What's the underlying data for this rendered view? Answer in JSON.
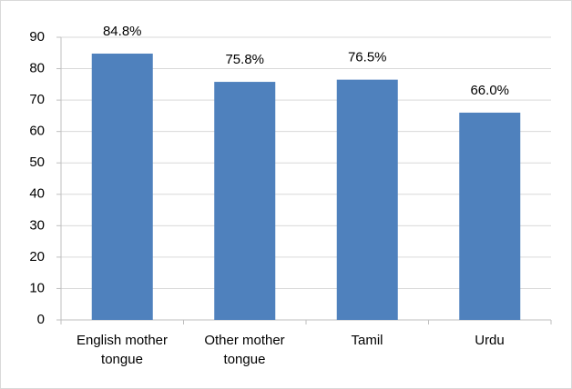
{
  "chart_data": {
    "type": "bar",
    "categories": [
      "English mother tongue",
      "Other mother tongue",
      "Tamil",
      "Urdu"
    ],
    "values": [
      84.8,
      75.8,
      76.5,
      66.0
    ],
    "value_labels": [
      "84.8%",
      "75.8%",
      "76.5%",
      "66.0%"
    ],
    "color": "#4f81bd",
    "ylim": [
      0,
      90
    ],
    "yticks": [
      0,
      10,
      20,
      30,
      40,
      50,
      60,
      70,
      80,
      90
    ],
    "grid": true
  }
}
